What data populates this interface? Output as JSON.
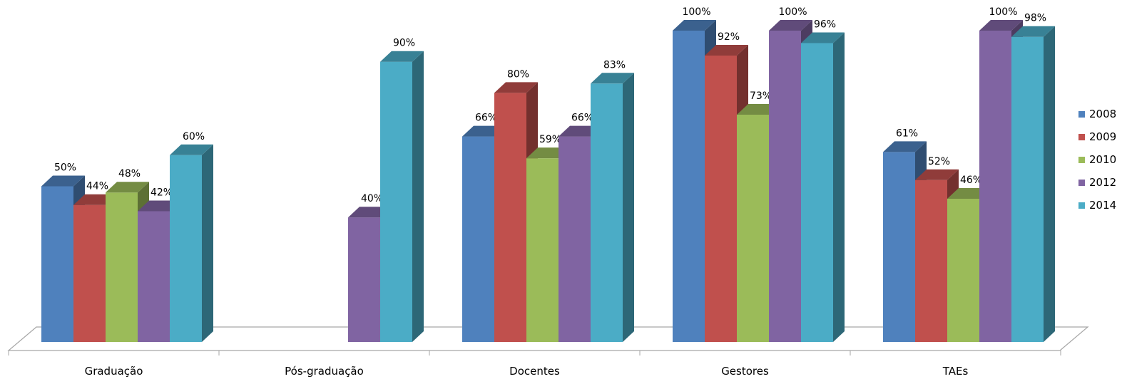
{
  "chart_data": {
    "type": "bar",
    "title": "",
    "xlabel": "",
    "ylabel": "",
    "ylim": [
      0,
      100
    ],
    "grid": false,
    "legend_position": "right",
    "categories": [
      "Graduação",
      "Pós-graduação",
      "Docentes",
      "Gestores",
      "TAEs"
    ],
    "series": [
      {
        "name": "2008",
        "color": "#4F81BD",
        "values": [
          50,
          null,
          66,
          100,
          61
        ],
        "labels": [
          "50%",
          null,
          "66%",
          "100%",
          "61%"
        ]
      },
      {
        "name": "2009",
        "color": "#C0504D",
        "values": [
          44,
          null,
          80,
          92,
          52
        ],
        "labels": [
          "44%",
          null,
          "80%",
          "92%",
          "52%"
        ]
      },
      {
        "name": "2010",
        "color": "#9BBB59",
        "values": [
          48,
          null,
          59,
          73,
          46
        ],
        "labels": [
          "48%",
          null,
          "59%",
          "73%",
          "46%"
        ]
      },
      {
        "name": "2012",
        "color": "#8064A2",
        "values": [
          42,
          40,
          66,
          100,
          100
        ],
        "labels": [
          "42%",
          "40%",
          "66%",
          "100%",
          "100%"
        ]
      },
      {
        "name": "2014",
        "color": "#4BACC6",
        "values": [
          60,
          90,
          83,
          96,
          98
        ],
        "labels": [
          "60%",
          "90%",
          "83%",
          "96%",
          "98%"
        ]
      }
    ]
  }
}
